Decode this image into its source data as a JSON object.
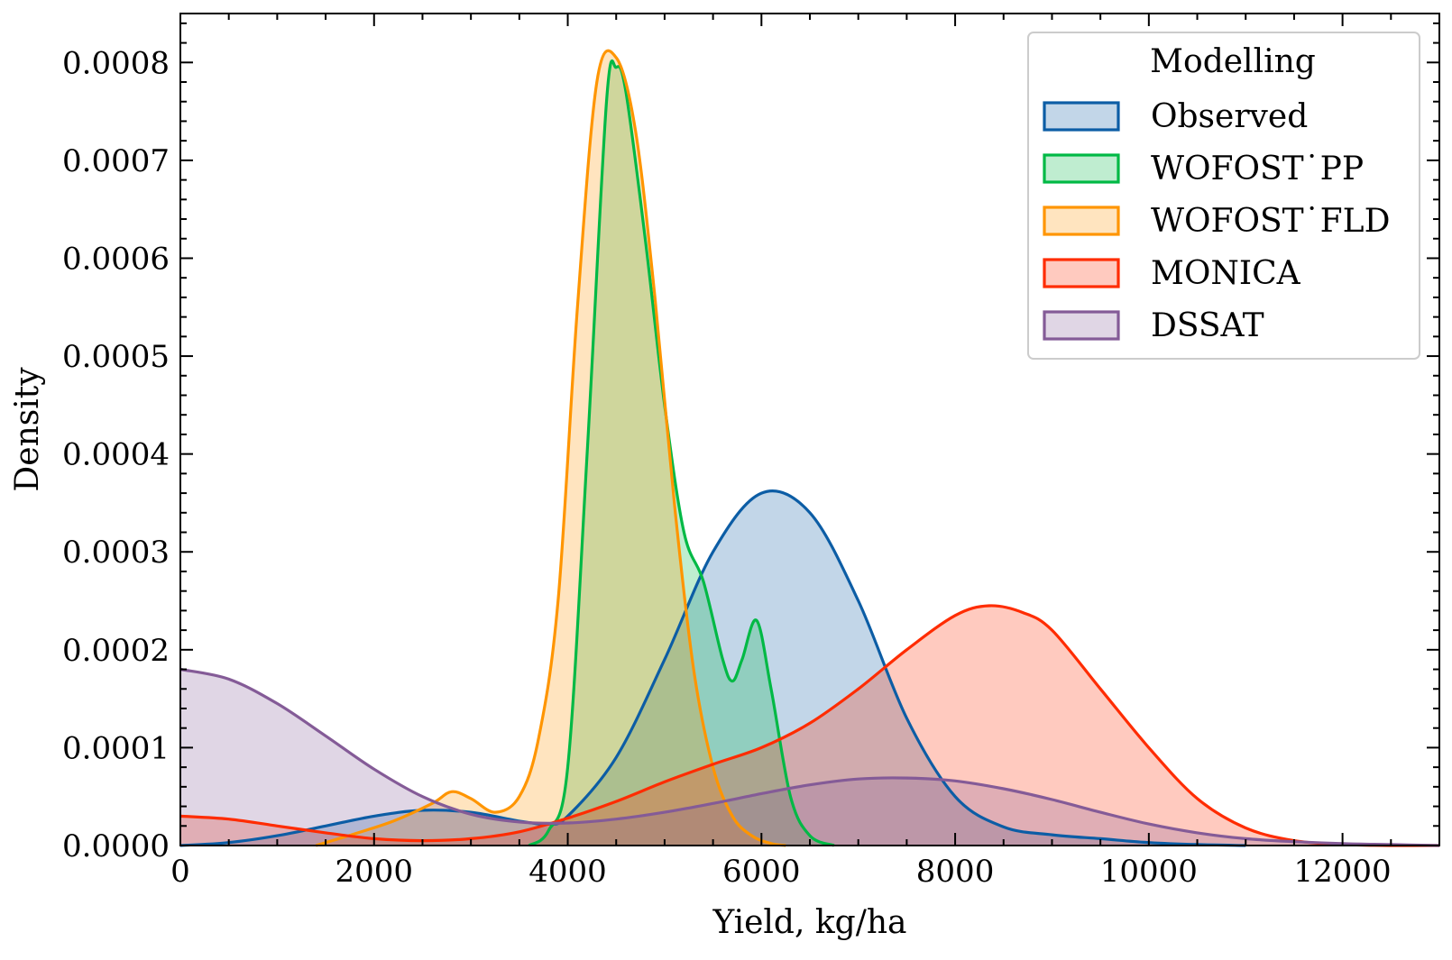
{
  "chart_data": {
    "type": "area",
    "xlabel": "Yield, kg/ha",
    "ylabel": "Density",
    "xlim": [
      0,
      13000
    ],
    "ylim": [
      0,
      0.00085
    ],
    "xticks": [
      0,
      2000,
      4000,
      6000,
      8000,
      10000,
      12000
    ],
    "xtick_labels": [
      "0",
      "2000",
      "4000",
      "6000",
      "8000",
      "10000",
      "12000"
    ],
    "yticks": [
      0,
      0.0001,
      0.0002,
      0.0003,
      0.0004,
      0.0005,
      0.0006,
      0.0007,
      0.0008
    ],
    "ytick_labels": [
      "0.0000",
      "0.0001",
      "0.0002",
      "0.0003",
      "0.0004",
      "0.0005",
      "0.0006",
      "0.0007",
      "0.0008"
    ],
    "grid": false,
    "legend": {
      "title": "Modelling",
      "placement": "top-right"
    },
    "series": [
      {
        "name": "Observed",
        "color": "#0C5DA5",
        "x": [
          0,
          500,
          1000,
          1500,
          2000,
          2500,
          3000,
          3500,
          3800,
          4000,
          4500,
          5000,
          5500,
          6000,
          6500,
          7000,
          7500,
          8000,
          8500,
          9000,
          9500,
          10000,
          10500,
          11000
        ],
        "y": [
          0,
          3e-06,
          1e-05,
          2e-05,
          3e-05,
          3.6e-05,
          3.4e-05,
          2.5e-05,
          2.2e-05,
          3e-05,
          9e-05,
          0.00019,
          0.0003,
          0.00036,
          0.00034,
          0.00025,
          0.00013,
          5e-05,
          1.9e-05,
          1.1e-05,
          7e-06,
          3e-06,
          1e-06,
          0
        ]
      },
      {
        "name": "WOFOST˙PP",
        "color": "#00B945",
        "x": [
          3600,
          3800,
          4000,
          4200,
          4400,
          4500,
          4600,
          4800,
          5000,
          5200,
          5400,
          5600,
          5700,
          5800,
          5950,
          6100,
          6300,
          6500,
          6750
        ],
        "y": [
          0,
          1.5e-05,
          8e-05,
          0.0004,
          0.00076,
          0.000795,
          0.00077,
          0.00062,
          0.00045,
          0.00032,
          0.00027,
          0.00019,
          0.000168,
          0.00019,
          0.00023,
          0.00016,
          5e-05,
          1e-05,
          0
        ]
      },
      {
        "name": "WOFOST˙FLD",
        "color": "#FF9500",
        "x": [
          1400,
          1800,
          2200,
          2600,
          2800,
          3000,
          3250,
          3500,
          3700,
          3900,
          4100,
          4300,
          4500,
          4700,
          4900,
          5100,
          5300,
          5500,
          5700,
          5900,
          6100,
          6250
        ],
        "y": [
          0,
          1.2e-05,
          2.5e-05,
          4.3e-05,
          5.5e-05,
          4.8e-05,
          3.4e-05,
          5e-05,
          0.00011,
          0.00025,
          0.00055,
          0.00078,
          0.000805,
          0.00073,
          0.00056,
          0.00035,
          0.00018,
          8e-05,
          3e-05,
          1e-05,
          2e-06,
          0
        ]
      },
      {
        "name": "MONICA",
        "color": "#FF2C00",
        "x": [
          0,
          500,
          1000,
          1500,
          2000,
          2500,
          3000,
          3500,
          4000,
          4500,
          5000,
          5500,
          6000,
          6500,
          7000,
          7500,
          8000,
          8350,
          8700,
          9000,
          9500,
          10000,
          10500,
          11000,
          11500,
          12000,
          12500,
          13000
        ],
        "y": [
          3e-05,
          2.7e-05,
          2e-05,
          1.3e-05,
          7e-06,
          5e-06,
          7e-06,
          1.4e-05,
          2.8e-05,
          4.5e-05,
          6.5e-05,
          8.3e-05,
          0.0001,
          0.000125,
          0.00016,
          0.0002,
          0.000235,
          0.000245,
          0.000238,
          0.00022,
          0.00016,
          0.0001,
          4.8e-05,
          1.8e-05,
          5e-06,
          1e-06,
          0,
          0
        ]
      },
      {
        "name": "DSSAT",
        "color": "#845B97",
        "x": [
          0,
          500,
          1000,
          1500,
          2000,
          2500,
          3000,
          3500,
          4000,
          4500,
          5000,
          5500,
          6000,
          6500,
          7000,
          7500,
          8000,
          8500,
          9000,
          9500,
          10000,
          10500,
          11000,
          11500,
          12000,
          12500,
          13000
        ],
        "y": [
          0.00018,
          0.00017,
          0.000145,
          0.000112,
          7.8e-05,
          5e-05,
          3.2e-05,
          2.4e-05,
          2.3e-05,
          2.7e-05,
          3.4e-05,
          4.3e-05,
          5.3e-05,
          6.2e-05,
          6.8e-05,
          6.9e-05,
          6.6e-05,
          5.8e-05,
          4.7e-05,
          3.4e-05,
          2.2e-05,
          1.3e-05,
          7e-06,
          4e-06,
          2e-06,
          1e-06,
          0
        ]
      }
    ]
  }
}
